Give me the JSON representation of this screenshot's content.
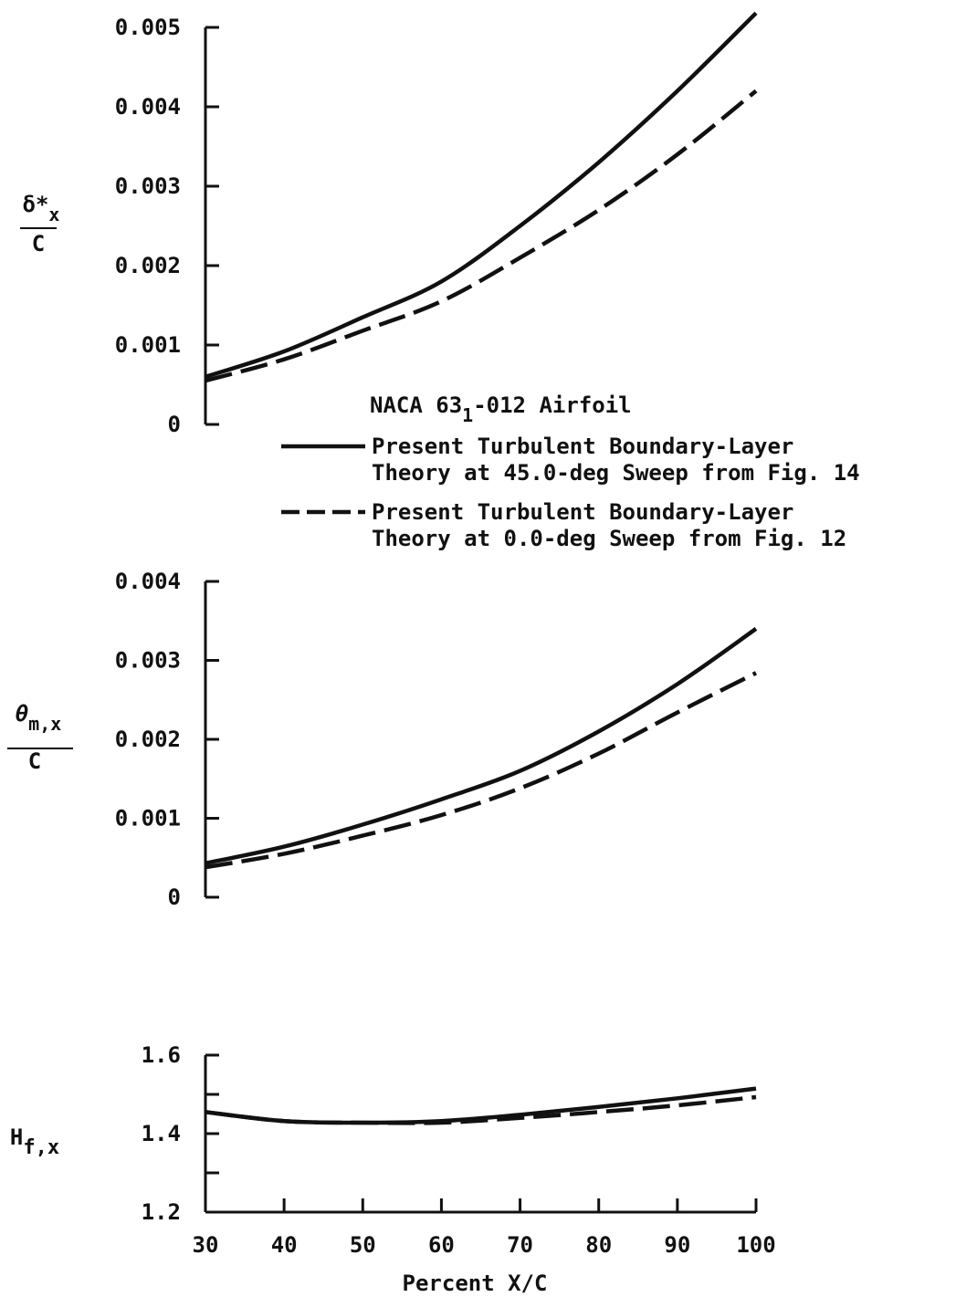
{
  "chart_data": [
    {
      "type": "line",
      "id": "delta",
      "ylabel_top": "δ*",
      "ylabel_top_sub": "x",
      "ylabel_bottom": "C",
      "ylim": [
        0,
        0.005
      ],
      "yticks": [
        "0",
        "0.001",
        "0.002",
        "0.003",
        "0.004",
        "0.005"
      ],
      "series": [
        {
          "style": "solid",
          "x": [
            30,
            40,
            50,
            60,
            70,
            80,
            90,
            100
          ],
          "y": [
            0.0006,
            0.00092,
            0.00135,
            0.0018,
            0.0025,
            0.0033,
            0.0042,
            0.00518
          ]
        },
        {
          "style": "dashed",
          "x": [
            30,
            40,
            50,
            60,
            70,
            80,
            90,
            100
          ],
          "y": [
            0.00055,
            0.00082,
            0.00118,
            0.00155,
            0.0021,
            0.0027,
            0.0034,
            0.0042
          ]
        }
      ]
    },
    {
      "type": "line",
      "id": "theta",
      "ylabel_top": "θ",
      "ylabel_top_sub": "m,x",
      "ylabel_bottom": "C",
      "ylim": [
        0,
        0.004
      ],
      "yticks": [
        "0",
        "0.001",
        "0.002",
        "0.003",
        "0.004"
      ],
      "series": [
        {
          "style": "solid",
          "x": [
            30,
            40,
            50,
            60,
            70,
            80,
            90,
            100
          ],
          "y": [
            0.00043,
            0.00064,
            0.00092,
            0.00124,
            0.0016,
            0.0021,
            0.0027,
            0.0034
          ]
        },
        {
          "style": "dashed",
          "x": [
            30,
            40,
            50,
            60,
            70,
            80,
            90,
            100
          ],
          "y": [
            0.00038,
            0.00055,
            0.00078,
            0.00104,
            0.00138,
            0.00182,
            0.00234,
            0.00284
          ]
        }
      ]
    },
    {
      "type": "line",
      "id": "hf",
      "ylabel_main": "H",
      "ylabel_sub": "f,x",
      "ylim": [
        1.2,
        1.6
      ],
      "yticks": [
        "1.2",
        "1.4",
        "1.6"
      ],
      "xlim": [
        30,
        100
      ],
      "xticks": [
        "30",
        "40",
        "50",
        "60",
        "70",
        "80",
        "90",
        "100"
      ],
      "xlabel": "Percent X/C",
      "series": [
        {
          "style": "solid",
          "x": [
            30,
            40,
            50,
            60,
            70,
            80,
            90,
            100
          ],
          "y": [
            1.455,
            1.432,
            1.428,
            1.432,
            1.448,
            1.468,
            1.49,
            1.515
          ]
        },
        {
          "style": "dashed",
          "x": [
            30,
            40,
            50,
            60,
            70,
            80,
            90,
            100
          ],
          "y": [
            1.455,
            1.432,
            1.428,
            1.428,
            1.44,
            1.455,
            1.472,
            1.493
          ]
        }
      ]
    }
  ],
  "legend": {
    "title_pre": "NACA 63",
    "title_sub": "1",
    "title_post": "-012 Airfoil",
    "entries": [
      {
        "style": "solid",
        "line1": "Present Turbulent Boundary-Layer",
        "line2": "Theory at 45.0-deg Sweep from Fig. 14"
      },
      {
        "style": "dashed",
        "line1": "Present Turbulent Boundary-Layer",
        "line2": "Theory at 0.0-deg Sweep from Fig. 12"
      }
    ]
  }
}
